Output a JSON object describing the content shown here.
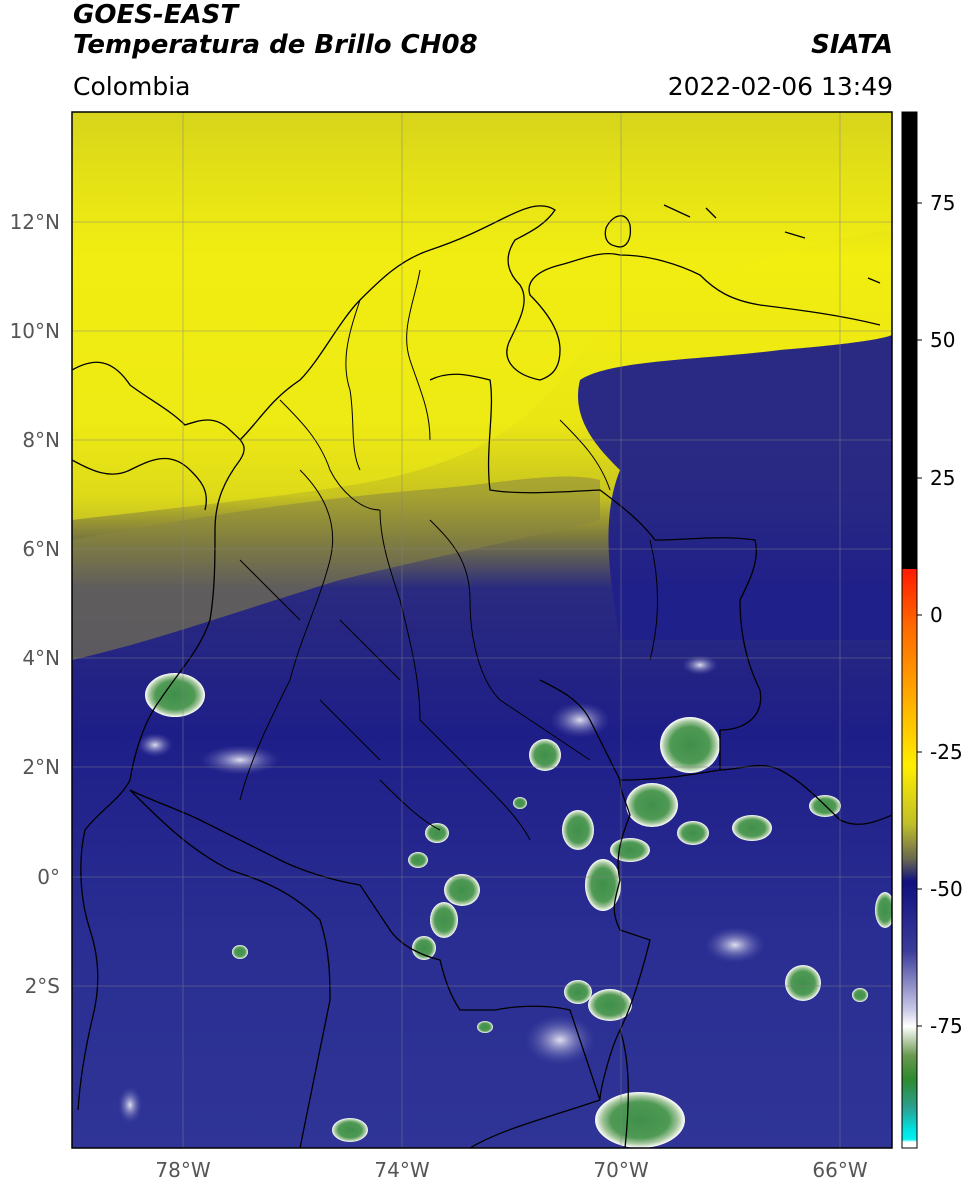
{
  "header": {
    "title_line1": "GOES-EAST",
    "title_line2": "Temperatura de Brillo CH08",
    "region": "Colombia",
    "source": "SIATA",
    "datetime": "2022-02-06 13:49"
  },
  "map": {
    "lon_ticks": [
      "78°W",
      "74°W",
      "70°W",
      "66°W"
    ],
    "lat_ticks": [
      "12°N",
      "10°N",
      "8°N",
      "6°N",
      "4°N",
      "2°N",
      "0°",
      "2°S"
    ],
    "extent": {
      "lon_min": -79.8,
      "lon_max": -64.8,
      "lat_min": -5.2,
      "lat_max": 14.0
    }
  },
  "colorbar": {
    "ticks": [
      "75",
      "50",
      "25",
      "0",
      "-25",
      "-50",
      "-75"
    ],
    "range": [
      -97,
      90
    ],
    "colors": {
      "black": "#000000",
      "red": "#ff1a00",
      "orange": "#ff9a00",
      "yellow": "#ffee00",
      "olive": "#8a8a24",
      "navy": "#1a1a8a",
      "white": "#ffffff",
      "green": "#2e8a2e",
      "teal": "#2aaaa0",
      "cyan": "#00eaea"
    }
  }
}
